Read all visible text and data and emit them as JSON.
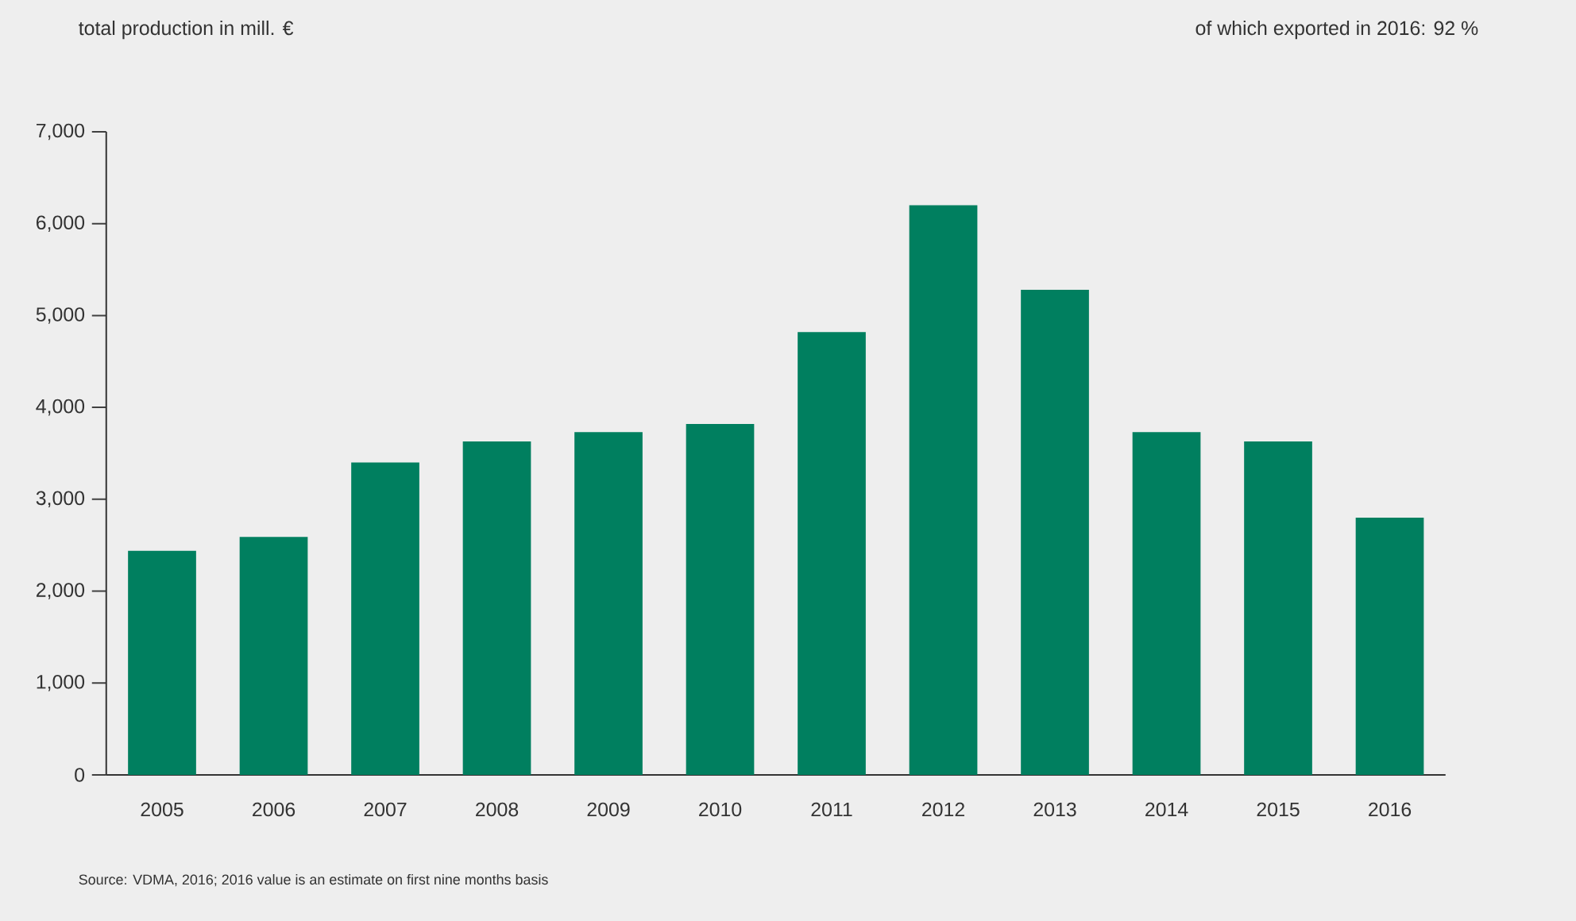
{
  "chart_data": {
    "type": "bar",
    "ylabel": "total production in mill. €",
    "subtitle": "of which exported in 2016: 92 %",
    "annotations": [
      "Source: VDMA, 2016; 2016 value is an estimate on first nine months basis"
    ],
    "categories": [
      "2005",
      "2006",
      "2007",
      "2008",
      "2009",
      "2010",
      "2011",
      "2012",
      "2013",
      "2014",
      "2015",
      "2016"
    ],
    "values": [
      2440,
      2590,
      3400,
      3630,
      3730,
      3820,
      4820,
      6200,
      5280,
      3730,
      3630,
      2800
    ],
    "color": "#007f5f",
    "ylim": [
      0,
      7000
    ],
    "yticks": [
      0,
      {
        "value": 1000,
        "label": "1,000"
      },
      {
        "value": 2000,
        "label": "2,000"
      },
      {
        "value": 3000,
        "label": "3,000"
      },
      {
        "value": 4000,
        "label": "4,000"
      },
      {
        "value": 5000,
        "label": "5,000"
      },
      {
        "value": 6000,
        "label": "6,000"
      },
      {
        "value": 7000,
        "label": "7,000"
      }
    ]
  }
}
